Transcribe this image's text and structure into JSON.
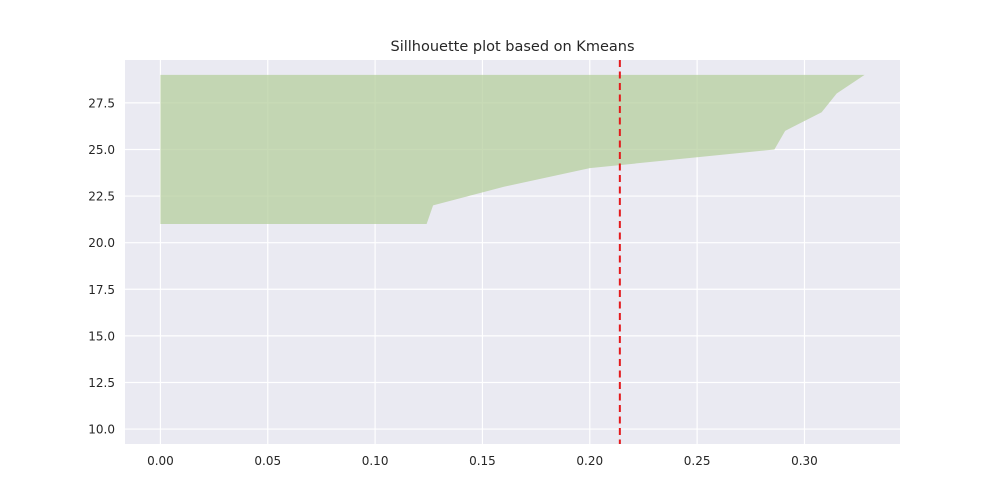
{
  "chart_data": {
    "type": "area",
    "title": "Sillhouette plot based on Kmeans",
    "xlabel": "",
    "ylabel": "",
    "xlim": [
      -0.0165,
      0.3445
    ],
    "ylim": [
      9.2,
      29.8
    ],
    "grid": true,
    "legend": "none",
    "x_ticks": [
      "0.00",
      "0.05",
      "0.10",
      "0.15",
      "0.20",
      "0.25",
      "0.30"
    ],
    "y_ticks": [
      "10.0",
      "12.5",
      "15.0",
      "17.5",
      "20.0",
      "22.5",
      "25.0",
      "27.5"
    ],
    "series": [
      {
        "color": "#b5cf9d",
        "points": [
          {
            "y": 21,
            "x": 0.124
          },
          {
            "y": 22,
            "x": 0.127
          },
          {
            "y": 23,
            "x": 0.16
          },
          {
            "y": 24,
            "x": 0.2
          },
          {
            "y": 25,
            "x": 0.286
          },
          {
            "y": 26,
            "x": 0.291
          },
          {
            "y": 27,
            "x": 0.308
          },
          {
            "y": 28,
            "x": 0.315
          },
          {
            "y": 29,
            "x": 0.328
          }
        ]
      }
    ],
    "reference_line": {
      "x": 0.214,
      "color": "#e31a1c",
      "style": "dashed"
    },
    "colors": {
      "background": "#eaeaf2",
      "grid": "#ffffff",
      "text": "#262626"
    }
  }
}
